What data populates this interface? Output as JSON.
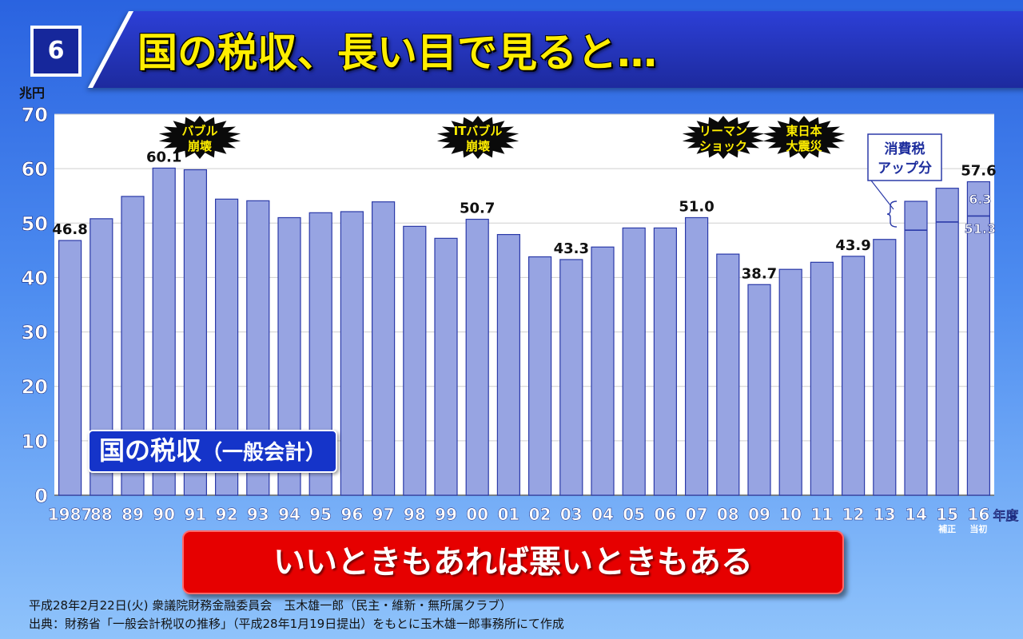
{
  "slide_number": "6",
  "title": "国の税収、長い目で見ると…",
  "subtitle": {
    "main": "国の税収",
    "paren": "（一般会計）"
  },
  "banner_text": "いいときもあれば悪いときもある",
  "footer": {
    "line1": "平成28年2月22日(火) 衆議院財務金融委員会　玉木雄一郎（民主・維新・無所属クラブ）",
    "line2": "出典：財務省「一般会計税収の推移」（平成28年1月19日提出）をもとに玉木雄一郎事務所にて作成"
  },
  "colors": {
    "bar_fill": "#97a4e2",
    "bar_stroke": "#2b3aa8",
    "annotation_burst": "#0a0a0a",
    "annotation_text": "#ffee00",
    "banner": "#e60000",
    "subtitle_box": "#1534c9"
  },
  "chart_data": {
    "type": "bar",
    "ylabel": "兆円",
    "xlabel": "",
    "ylim": [
      0,
      70
    ],
    "yticks": [
      0,
      10,
      20,
      30,
      40,
      50,
      60,
      70
    ],
    "grid": true,
    "x_suffix": "年度",
    "categories": [
      "1987",
      "88",
      "89",
      "90",
      "91",
      "92",
      "93",
      "94",
      "95",
      "96",
      "97",
      "98",
      "99",
      "00",
      "01",
      "02",
      "03",
      "04",
      "05",
      "06",
      "07",
      "08",
      "09",
      "10",
      "11",
      "12",
      "13",
      "14",
      "15",
      "16"
    ],
    "category_notes": {
      "15": "補正",
      "16": "当初"
    },
    "values": [
      46.8,
      50.8,
      54.9,
      60.1,
      59.8,
      54.4,
      54.1,
      51.0,
      51.9,
      52.1,
      53.9,
      49.4,
      47.2,
      50.7,
      47.9,
      43.8,
      43.3,
      45.6,
      49.1,
      49.1,
      51.0,
      44.3,
      38.7,
      41.5,
      42.8,
      43.9,
      47.0,
      54.0,
      56.4,
      57.6
    ],
    "consumption_tax_split": {
      "14": 48.7,
      "15": 50.2,
      "16": 51.3
    },
    "data_labels": [
      {
        "category": "1987",
        "text": "46.8"
      },
      {
        "category": "90",
        "text": "60.1"
      },
      {
        "category": "00",
        "text": "50.7"
      },
      {
        "category": "03",
        "text": "43.3"
      },
      {
        "category": "07",
        "text": "51.0"
      },
      {
        "category": "09",
        "text": "38.7"
      },
      {
        "category": "12",
        "text": "43.9"
      },
      {
        "category": "16",
        "text": "57.6"
      }
    ],
    "inner_labels": [
      {
        "category": "16",
        "text": "6.3",
        "at_value": 54.45
      },
      {
        "category": "16",
        "text": "51.3",
        "at_value": 49.0
      }
    ],
    "events": [
      {
        "category": "91",
        "lines": [
          "バブル",
          "崩壊"
        ]
      },
      {
        "category": "00",
        "lines": [
          "ITバブル",
          "崩壊"
        ]
      },
      {
        "category": "07",
        "lines": [
          "リーマン",
          "ショック"
        ]
      },
      {
        "category": "10",
        "lines": [
          "東日本",
          "大震災"
        ]
      }
    ],
    "tax_increase_note": {
      "lines": [
        "消費税",
        "アップ分"
      ]
    }
  }
}
